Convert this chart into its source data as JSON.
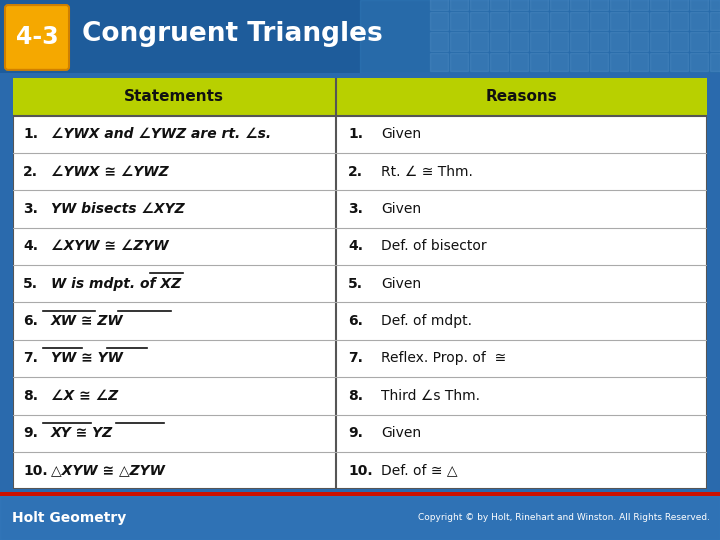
{
  "title_badge": "4-3",
  "title_text": "Congruent Triangles",
  "col_header": [
    "Statements",
    "Reasons"
  ],
  "rows_left": [
    "1.",
    "2.",
    "3.",
    "4.",
    "5.",
    "6.",
    "7.",
    "8.",
    "9.",
    "10."
  ],
  "rows_left_text": [
    "∠YWX and ∠YWZ are rt. ∠s.",
    "∠YWX ≅ ∠YWZ",
    "YW bisects ∠XYZ",
    "∠XYW ≅ ∠ZYW",
    "W is mdpt. of XZ",
    "XW ≅ ZW",
    "YW ≅ YW",
    "∠X ≅ ∠Z",
    "XY ≅ YZ",
    "△XYW ≅ △ZYW"
  ],
  "rows_right_num": [
    "1.",
    "2.",
    "3.",
    "4.",
    "5.",
    "6.",
    "7.",
    "8.",
    "9.",
    "10."
  ],
  "rows_right_text": [
    "Given",
    "Rt. ∠ ≅ Thm.",
    "Given",
    "Def. of bisector",
    "Given",
    "Def. of mdpt.",
    "Reflex. Prop. of  ≅",
    "Third ∠s Thm.",
    "Given",
    "Def. of ≅ △"
  ],
  "overline_left": [
    false,
    false,
    false,
    false,
    true,
    true,
    true,
    false,
    true,
    false
  ],
  "overline_left_chars": [
    "",
    "",
    "",
    "",
    "XZ",
    "XW/ZW",
    "YW/YW",
    "",
    "XY/YZ",
    ""
  ],
  "header_yellow": "#b8d000",
  "badge_orange": "#f5a800",
  "top_blue": "#2a6aad",
  "top_blue_dark": "#1a4a80",
  "footer_blue": "#2a6aad",
  "footer_text": "Holt Geometry",
  "footer_right": "Copyright © by Holt, Rinehart and Winston. All Rights Reserved.",
  "col_split": 0.465
}
